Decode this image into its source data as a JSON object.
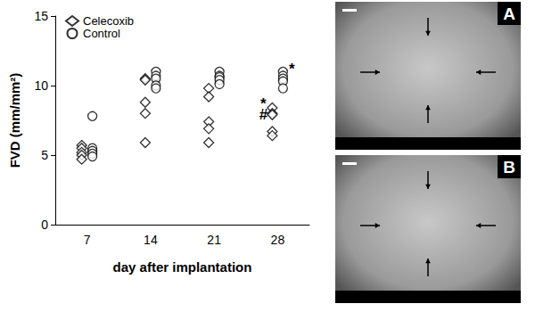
{
  "chart_data": {
    "type": "scatter",
    "xlabel": "day after implantation",
    "ylabel": "FVD (mm/mm²)",
    "categories": [
      "7",
      "14",
      "21",
      "28"
    ],
    "series": [
      {
        "name": "Celecoxib",
        "marker": "diamond",
        "color": "#000000",
        "values": [
          [
            5.7,
            5.5,
            5.2,
            5.0,
            4.7
          ],
          [
            10.5,
            10.4,
            8.8,
            8.0,
            5.9
          ],
          [
            9.8,
            9.2,
            7.4,
            6.9,
            5.9
          ],
          [
            8.4,
            8.0,
            7.9,
            6.7,
            6.4
          ]
        ]
      },
      {
        "name": "Control",
        "marker": "circle",
        "color": "#000000",
        "values": [
          [
            7.8,
            5.5,
            5.3,
            5.1,
            4.9
          ],
          [
            11.0,
            10.7,
            10.5,
            10.0,
            9.8
          ],
          [
            11.0,
            10.7,
            10.6,
            10.4,
            10.1
          ],
          [
            11.0,
            10.7,
            10.5,
            10.3,
            9.8
          ]
        ]
      }
    ],
    "annotations": [
      {
        "text": "*",
        "x": "28",
        "y": 8.7,
        "series": "Celecoxib"
      },
      {
        "text": "#",
        "x": "28",
        "y": 7.9,
        "series": "Celecoxib"
      },
      {
        "text": "*",
        "x": "28",
        "y": 11.2,
        "series": "Control"
      }
    ],
    "ylim": [
      0,
      15
    ],
    "yticks": [
      0,
      5,
      10,
      15
    ],
    "grid": false,
    "legend": "top-left"
  },
  "image_panels": [
    {
      "label": "A"
    },
    {
      "label": "B"
    }
  ]
}
